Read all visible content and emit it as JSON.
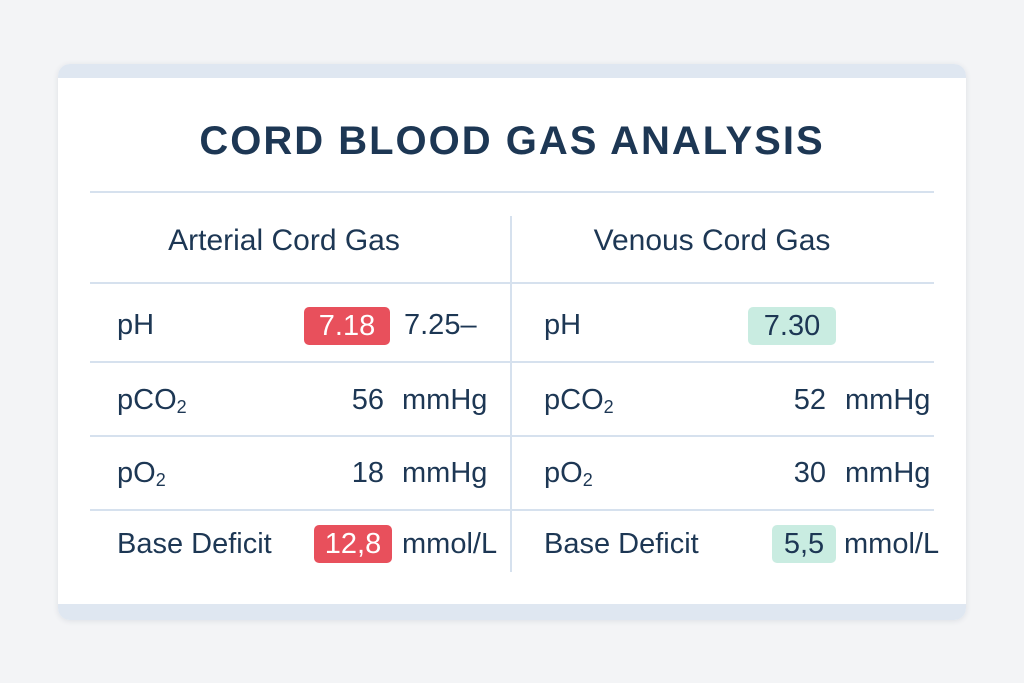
{
  "title": "CORD BLOOD GAS ANALYSIS",
  "colors": {
    "abnormal": "#e8505c",
    "normal": "#c9ece1",
    "text": "#1d3754"
  },
  "arterial": {
    "heading": "Arterial Cord Gas",
    "ph": {
      "label": "pH",
      "value": "7.18",
      "range": "7.25–",
      "status": "abnormal"
    },
    "pco2": {
      "label_main": "pCO",
      "label_sub": "2",
      "value": "56",
      "unit": "mmHg"
    },
    "po2": {
      "label_main": "pO",
      "label_sub": "2",
      "value": "18",
      "unit": "mmHg"
    },
    "base_deficit": {
      "label": "Base Deficit",
      "value": "12,8",
      "unit": "mmol/L",
      "status": "abnormal"
    }
  },
  "venous": {
    "heading": "Venous Cord Gas",
    "ph": {
      "label": "pH",
      "value": "7.30",
      "status": "normal"
    },
    "pco2": {
      "label_main": "pCO",
      "label_sub": "2",
      "value": "52",
      "unit": "mmHg"
    },
    "po2": {
      "label_main": "pO",
      "label_sub": "2",
      "value": "30",
      "unit": "mmHg"
    },
    "base_deficit": {
      "label": "Base Deficit",
      "value": "5,5",
      "unit": "mmol/L",
      "status": "normal"
    }
  }
}
